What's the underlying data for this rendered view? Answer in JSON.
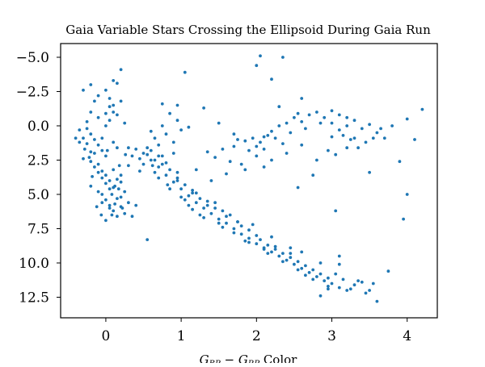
{
  "chart_data": {
    "type": "scatter",
    "title": "Gaia Variable Stars Crossing the Ellipsoid During Gaia Run",
    "xlabel": "G_BP − G_RP Color",
    "xlabel_parts": {
      "g1": "G",
      "sub1": "BP",
      "minus": " − ",
      "g2": "G",
      "sub2": "RP",
      "rest": " Color"
    },
    "ylabel": "",
    "xlim": [
      -0.6,
      4.4
    ],
    "ylim": [
      14.0,
      -6.0
    ],
    "y_inverted": true,
    "xticks": [
      0,
      1,
      2,
      3,
      4
    ],
    "xtick_labels": [
      "0",
      "1",
      "2",
      "3",
      "4"
    ],
    "yticks": [
      -5.0,
      -2.5,
      0.0,
      2.5,
      5.0,
      7.5,
      10.0,
      12.5
    ],
    "ytick_labels": [
      "−5.0",
      "−2.5",
      "0.0",
      "2.5",
      "5.0",
      "7.5",
      "10.0",
      "12.5"
    ],
    "marker_color": "#1f77b4",
    "grid": false,
    "points": [
      [
        -0.25,
        0.2
      ],
      [
        -0.2,
        0.6
      ],
      [
        -0.15,
        1.0
      ],
      [
        -0.1,
        1.4
      ],
      [
        -0.05,
        1.8
      ],
      [
        0.0,
        2.2
      ],
      [
        -0.2,
        2.6
      ],
      [
        -0.15,
        3.0
      ],
      [
        -0.1,
        3.4
      ],
      [
        -0.05,
        3.8
      ],
      [
        0.0,
        4.2
      ],
      [
        0.05,
        4.6
      ],
      [
        -0.05,
        5.0
      ],
      [
        0.0,
        5.4
      ],
      [
        0.05,
        5.8
      ],
      [
        0.1,
        6.2
      ],
      [
        0.15,
        6.6
      ],
      [
        0.0,
        6.9
      ],
      [
        -0.2,
        4.4
      ],
      [
        0.2,
        5.2
      ],
      [
        0.25,
        4.8
      ],
      [
        0.3,
        5.6
      ],
      [
        0.15,
        3.9
      ],
      [
        0.1,
        3.2
      ],
      [
        -0.3,
        0.9
      ],
      [
        -0.28,
        1.7
      ],
      [
        -0.22,
        2.3
      ],
      [
        -0.1,
        -0.6
      ],
      [
        0.0,
        -0.9
      ],
      [
        0.05,
        -1.4
      ],
      [
        -0.3,
        -2.6
      ],
      [
        -0.2,
        -3.0
      ],
      [
        0.1,
        -3.3
      ],
      [
        0.15,
        -3.1
      ],
      [
        0.2,
        -1.8
      ],
      [
        0.1,
        -1.0
      ],
      [
        0.05,
        -0.4
      ],
      [
        0.0,
        0.0
      ],
      [
        -0.35,
        1.2
      ],
      [
        -0.4,
        0.9
      ],
      [
        0.2,
        -4.1
      ],
      [
        0.08,
        5.0
      ],
      [
        0.12,
        4.4
      ],
      [
        -0.12,
        5.9
      ],
      [
        -0.06,
        6.5
      ],
      [
        0.22,
        6.0
      ],
      [
        0.18,
        2.9
      ],
      [
        0.26,
        2.1
      ],
      [
        0.3,
        1.6
      ],
      [
        0.1,
        1.2
      ],
      [
        0.4,
        1.7
      ],
      [
        0.5,
        2.0
      ],
      [
        0.6,
        2.5
      ],
      [
        0.7,
        3.0
      ],
      [
        0.8,
        3.6
      ],
      [
        0.9,
        4.1
      ],
      [
        1.0,
        4.6
      ],
      [
        1.1,
        5.1
      ],
      [
        1.2,
        5.6
      ],
      [
        1.3,
        6.0
      ],
      [
        1.4,
        6.4
      ],
      [
        1.5,
        6.8
      ],
      [
        1.6,
        7.1
      ],
      [
        1.7,
        7.5
      ],
      [
        1.8,
        7.9
      ],
      [
        1.9,
        8.2
      ],
      [
        2.0,
        8.6
      ],
      [
        2.1,
        8.9
      ],
      [
        2.2,
        9.2
      ],
      [
        2.3,
        9.5
      ],
      [
        2.4,
        9.8
      ],
      [
        2.5,
        10.1
      ],
      [
        2.6,
        10.4
      ],
      [
        2.7,
        10.7
      ],
      [
        2.8,
        11.0
      ],
      [
        2.9,
        11.3
      ],
      [
        3.0,
        11.5
      ],
      [
        3.1,
        11.8
      ],
      [
        3.2,
        12.0
      ],
      [
        3.3,
        11.6
      ],
      [
        3.4,
        11.4
      ],
      [
        3.5,
        12.0
      ],
      [
        3.6,
        12.8
      ],
      [
        2.85,
        12.4
      ],
      [
        2.95,
        11.9
      ],
      [
        3.05,
        10.8
      ],
      [
        3.1,
        10.1
      ],
      [
        2.6,
        9.2
      ],
      [
        2.45,
        8.9
      ],
      [
        2.2,
        8.1
      ],
      [
        1.95,
        7.2
      ],
      [
        1.65,
        6.5
      ],
      [
        1.45,
        5.6
      ],
      [
        1.15,
        4.7
      ],
      [
        0.95,
        3.4
      ],
      [
        0.75,
        2.2
      ],
      [
        0.55,
        1.6
      ],
      [
        0.62,
        2.9
      ],
      [
        0.82,
        4.3
      ],
      [
        1.05,
        5.4
      ],
      [
        1.25,
        6.5
      ],
      [
        1.55,
        7.4
      ],
      [
        1.85,
        8.4
      ],
      [
        2.15,
        9.3
      ],
      [
        2.55,
        10.5
      ],
      [
        2.75,
        11.2
      ],
      [
        1.6,
        3.5
      ],
      [
        1.8,
        2.8
      ],
      [
        2.0,
        2.2
      ],
      [
        1.4,
        4.0
      ],
      [
        1.2,
        3.2
      ],
      [
        0.9,
        2.0
      ],
      [
        0.7,
        1.4
      ],
      [
        0.6,
        0.4
      ],
      [
        0.75,
        0.0
      ],
      [
        0.95,
        -0.4
      ],
      [
        1.1,
        0.1
      ],
      [
        0.85,
        -0.9
      ],
      [
        0.75,
        -1.6
      ],
      [
        0.95,
        -1.5
      ],
      [
        1.3,
        -1.3
      ],
      [
        1.5,
        -0.2
      ],
      [
        1.7,
        0.6
      ],
      [
        1.85,
        1.1
      ],
      [
        2.0,
        1.5
      ],
      [
        2.1,
        0.8
      ],
      [
        2.2,
        0.4
      ],
      [
        2.3,
        0.0
      ],
      [
        2.4,
        -0.2
      ],
      [
        2.5,
        -0.6
      ],
      [
        2.6,
        -0.3
      ],
      [
        2.7,
        -0.8
      ],
      [
        2.8,
        -1.0
      ],
      [
        2.9,
        -0.6
      ],
      [
        3.0,
        -0.2
      ],
      [
        3.1,
        0.3
      ],
      [
        3.2,
        0.0
      ],
      [
        3.3,
        -0.4
      ],
      [
        3.4,
        0.2
      ],
      [
        3.5,
        -0.1
      ],
      [
        3.6,
        0.5
      ],
      [
        3.7,
        0.9
      ],
      [
        3.8,
        0.0
      ],
      [
        4.0,
        -0.5
      ],
      [
        4.2,
        -1.2
      ],
      [
        3.9,
        2.6
      ],
      [
        4.1,
        1.0
      ],
      [
        3.5,
        3.4
      ],
      [
        4.0,
        5.0
      ],
      [
        3.95,
        6.8
      ],
      [
        3.05,
        6.2
      ],
      [
        2.55,
        4.5
      ],
      [
        2.75,
        3.6
      ],
      [
        2.3,
        -1.4
      ],
      [
        2.2,
        -3.4
      ],
      [
        2.6,
        -2.0
      ],
      [
        2.0,
        -4.4
      ],
      [
        2.35,
        -5.0
      ],
      [
        2.05,
        -5.1
      ],
      [
        2.55,
        -0.9
      ],
      [
        1.7,
        1.5
      ],
      [
        1.9,
        1.8
      ],
      [
        2.05,
        1.2
      ],
      [
        2.15,
        0.7
      ],
      [
        2.25,
        0.9
      ],
      [
        2.45,
        0.5
      ],
      [
        2.35,
        1.3
      ],
      [
        2.65,
        0.2
      ],
      [
        2.85,
        -0.2
      ],
      [
        1.55,
        1.7
      ],
      [
        1.75,
        1.0
      ],
      [
        1.45,
        2.3
      ],
      [
        1.65,
        2.6
      ],
      [
        1.35,
        1.9
      ],
      [
        1.95,
        0.9
      ],
      [
        2.1,
        1.7
      ],
      [
        0.65,
        0.9
      ],
      [
        0.8,
        0.6
      ],
      [
        0.9,
        1.2
      ],
      [
        1.0,
        0.3
      ],
      [
        0.45,
        3.3
      ],
      [
        0.35,
        6.6
      ],
      [
        0.55,
        8.3
      ],
      [
        0.4,
        5.8
      ],
      [
        0.2,
        4.1
      ],
      [
        0.15,
        1.6
      ],
      [
        0.25,
        -0.2
      ],
      [
        1.05,
        -3.9
      ],
      [
        0.3,
        2.9
      ],
      [
        -0.15,
        2.0
      ],
      [
        -0.05,
        0.9
      ],
      [
        0.02,
        1.8
      ],
      [
        -0.18,
        3.7
      ],
      [
        -0.1,
        4.8
      ],
      [
        -0.05,
        5.6
      ],
      [
        0.05,
        6.0
      ],
      [
        0.08,
        6.5
      ],
      [
        0.12,
        5.7
      ],
      [
        0.17,
        4.6
      ],
      [
        0.2,
        3.6
      ],
      [
        0.35,
        2.2
      ],
      [
        0.45,
        2.4
      ],
      [
        0.5,
        2.8
      ],
      [
        0.65,
        3.4
      ],
      [
        0.85,
        4.6
      ],
      [
        1.0,
        5.2
      ],
      [
        1.1,
        5.8
      ],
      [
        1.3,
        6.7
      ],
      [
        1.5,
        7.1
      ],
      [
        1.7,
        7.8
      ],
      [
        1.9,
        8.5
      ],
      [
        2.1,
        9.0
      ],
      [
        2.35,
        9.9
      ],
      [
        2.65,
        10.9
      ],
      [
        2.95,
        11.7
      ],
      [
        3.15,
        11.2
      ],
      [
        3.25,
        11.9
      ],
      [
        3.45,
        12.2
      ],
      [
        3.35,
        11.3
      ],
      [
        3.55,
        11.5
      ],
      [
        3.75,
        10.6
      ],
      [
        3.1,
        9.5
      ],
      [
        2.25,
        8.8
      ],
      [
        1.75,
        7.0
      ],
      [
        1.35,
        5.8
      ],
      [
        0.95,
        4.0
      ],
      [
        0.7,
        3.8
      ],
      [
        1.15,
        6.1
      ],
      [
        2.85,
        10.0
      ],
      [
        2.45,
        9.3
      ],
      [
        3.0,
        0.8
      ],
      [
        3.15,
        0.7
      ],
      [
        3.25,
        1.0
      ],
      [
        3.35,
        1.6
      ],
      [
        3.45,
        1.2
      ],
      [
        3.55,
        0.9
      ],
      [
        3.65,
        0.2
      ],
      [
        3.3,
        0.9
      ],
      [
        3.1,
        -0.8
      ],
      [
        3.2,
        -0.6
      ],
      [
        3.0,
        -1.1
      ],
      [
        2.95,
        1.8
      ],
      [
        2.8,
        2.5
      ],
      [
        3.05,
        2.1
      ],
      [
        3.2,
        1.6
      ],
      [
        2.6,
        1.4
      ],
      [
        2.4,
        2.0
      ],
      [
        2.2,
        2.5
      ],
      [
        2.1,
        3.0
      ],
      [
        1.85,
        3.2
      ],
      [
        -0.25,
        1.3
      ],
      [
        -0.2,
        1.9
      ],
      [
        -0.1,
        2.8
      ],
      [
        -0.05,
        3.3
      ],
      [
        0.0,
        3.6
      ],
      [
        0.05,
        4.0
      ],
      [
        0.1,
        4.5
      ],
      [
        0.15,
        5.3
      ],
      [
        0.2,
        5.9
      ],
      [
        0.25,
        6.4
      ],
      [
        -0.3,
        2.4
      ],
      [
        -0.35,
        0.3
      ],
      [
        -0.25,
        -0.3
      ],
      [
        -0.2,
        -1.0
      ],
      [
        -0.15,
        -1.8
      ],
      [
        -0.1,
        -2.2
      ],
      [
        0.0,
        -2.6
      ],
      [
        0.05,
        -2.0
      ],
      [
        0.1,
        -1.5
      ],
      [
        0.15,
        -0.8
      ],
      [
        1.2,
        4.9
      ],
      [
        1.25,
        5.3
      ],
      [
        1.35,
        5.5
      ],
      [
        1.45,
        6.0
      ],
      [
        1.55,
        6.2
      ],
      [
        1.6,
        6.6
      ],
      [
        1.75,
        7.0
      ],
      [
        1.8,
        7.3
      ],
      [
        1.9,
        7.6
      ],
      [
        2.0,
        8.0
      ],
      [
        2.05,
        8.3
      ],
      [
        2.15,
        8.7
      ],
      [
        2.25,
        9.0
      ],
      [
        2.35,
        9.3
      ],
      [
        2.45,
        9.6
      ],
      [
        2.55,
        9.9
      ],
      [
        2.65,
        10.2
      ],
      [
        2.75,
        10.5
      ],
      [
        2.85,
        10.8
      ],
      [
        2.95,
        11.1
      ],
      [
        0.55,
        2.1
      ],
      [
        0.65,
        2.5
      ],
      [
        0.75,
        2.8
      ],
      [
        0.85,
        3.2
      ],
      [
        0.95,
        3.8
      ],
      [
        1.05,
        4.3
      ],
      [
        1.15,
        4.9
      ],
      [
        0.6,
        1.8
      ],
      [
        0.7,
        2.2
      ],
      [
        0.8,
        2.7
      ]
    ]
  }
}
